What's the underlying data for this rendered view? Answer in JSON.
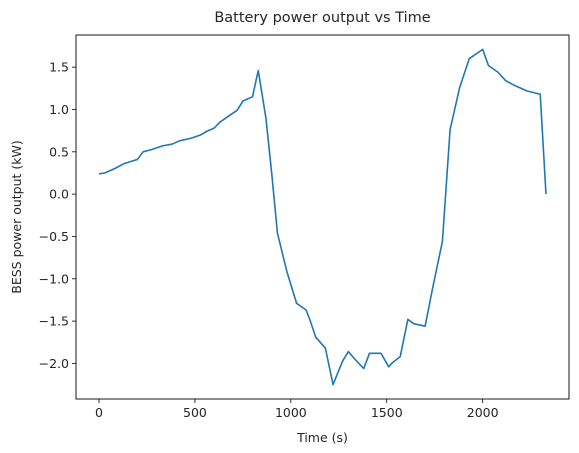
{
  "chart_data": {
    "type": "line",
    "title": "Battery power output vs Time",
    "xlabel": "Time (s)",
    "ylabel": "BESS power output (kW)",
    "xlim": [
      -120,
      2450
    ],
    "ylim": [
      -2.42,
      1.88
    ],
    "xticks": [
      0,
      500,
      1000,
      1500,
      2000
    ],
    "yticks": [
      -2.0,
      -1.5,
      -1.0,
      -0.5,
      0.0,
      0.5,
      1.0,
      1.5
    ],
    "xtick_labels": [
      "0",
      "500",
      "1000",
      "1500",
      "2000"
    ],
    "ytick_labels": [
      "−2.0",
      "−1.5",
      "−1.0",
      "−0.5",
      "0.0",
      "0.5",
      "1.0",
      "1.5"
    ],
    "grid": false,
    "series": [
      {
        "color": "#1f77b4",
        "x": [
          0,
          30,
          80,
          130,
          200,
          230,
          280,
          330,
          380,
          420,
          480,
          530,
          560,
          600,
          630,
          680,
          720,
          750,
          800,
          830,
          870,
          900,
          930,
          980,
          1030,
          1080,
          1100,
          1130,
          1180,
          1220,
          1270,
          1300,
          1330,
          1380,
          1410,
          1430,
          1470,
          1510,
          1530,
          1570,
          1610,
          1640,
          1700,
          1740,
          1790,
          1830,
          1880,
          1930,
          2000,
          2030,
          2080,
          2120,
          2170,
          2230,
          2300,
          2330
        ],
        "y": [
          0.24,
          0.25,
          0.3,
          0.36,
          0.41,
          0.5,
          0.53,
          0.57,
          0.59,
          0.63,
          0.66,
          0.7,
          0.74,
          0.78,
          0.85,
          0.93,
          0.99,
          1.1,
          1.15,
          1.46,
          0.9,
          0.25,
          -0.46,
          -0.92,
          -1.29,
          -1.37,
          -1.49,
          -1.69,
          -1.82,
          -2.25,
          -1.97,
          -1.86,
          -1.94,
          -2.06,
          -1.88,
          -1.88,
          -1.88,
          -2.04,
          -1.99,
          -1.92,
          -1.48,
          -1.53,
          -1.56,
          -1.1,
          -0.56,
          0.76,
          1.26,
          1.6,
          1.71,
          1.52,
          1.44,
          1.34,
          1.28,
          1.22,
          1.18,
          0.0
        ]
      }
    ]
  }
}
